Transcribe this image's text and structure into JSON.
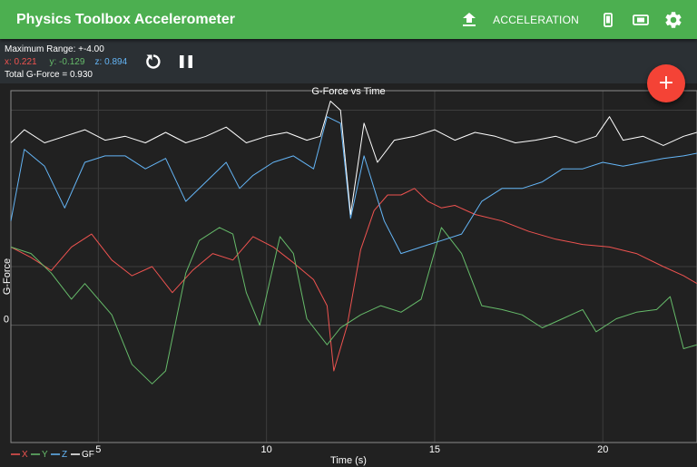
{
  "app": {
    "title": "Physics Toolbox Accelerometer"
  },
  "toolbar": {
    "mode_label": "ACCELERATION"
  },
  "readout": {
    "max_range": "Maximum Range: +-4.00",
    "x": "x: 0.221",
    "y": "y: -0.129",
    "z": "z: 0.894",
    "total": "Total G-Force = 0.930"
  },
  "icons": {
    "upload": "upload-icon",
    "portrait": "phone-portrait-icon",
    "landscape": "phone-landscape-icon",
    "settings": "gear-icon",
    "reset": "refresh-icon",
    "pause": "pause-icon",
    "add": "plus-icon"
  },
  "colors": {
    "appbar": "#4caf50",
    "x": "#ef5350",
    "y": "#66bb6a",
    "z": "#64b5f6",
    "gf": "#ffffff",
    "fab": "#f44336"
  },
  "chart_data": {
    "type": "line",
    "title": "G-Force vs Time",
    "xlabel": "Time (s)",
    "ylabel": "G-Force",
    "xlim": [
      2.4,
      22.8
    ],
    "ylim": [
      -0.9,
      1.8
    ],
    "x_ticks": [
      5,
      10,
      15,
      20
    ],
    "y_ticks": [
      0
    ],
    "grid": true,
    "legend_position": "bottom-left",
    "series": [
      {
        "name": "X",
        "color": "#ef5350",
        "points": [
          [
            2.4,
            0.6
          ],
          [
            3.0,
            0.52
          ],
          [
            3.6,
            0.42
          ],
          [
            4.2,
            0.6
          ],
          [
            4.8,
            0.7
          ],
          [
            5.4,
            0.5
          ],
          [
            6.0,
            0.38
          ],
          [
            6.6,
            0.45
          ],
          [
            7.2,
            0.25
          ],
          [
            7.8,
            0.42
          ],
          [
            8.4,
            0.55
          ],
          [
            9.0,
            0.5
          ],
          [
            9.6,
            0.68
          ],
          [
            10.2,
            0.6
          ],
          [
            10.8,
            0.48
          ],
          [
            11.4,
            0.35
          ],
          [
            11.8,
            0.15
          ],
          [
            12.0,
            -0.35
          ],
          [
            12.4,
            0.0
          ],
          [
            12.8,
            0.58
          ],
          [
            13.2,
            0.88
          ],
          [
            13.6,
            1.0
          ],
          [
            14.0,
            1.0
          ],
          [
            14.4,
            1.05
          ],
          [
            14.8,
            0.95
          ],
          [
            15.2,
            0.9
          ],
          [
            15.6,
            0.92
          ],
          [
            16.2,
            0.85
          ],
          [
            17.0,
            0.8
          ],
          [
            17.8,
            0.72
          ],
          [
            18.6,
            0.66
          ],
          [
            19.4,
            0.62
          ],
          [
            20.2,
            0.6
          ],
          [
            21.0,
            0.55
          ],
          [
            21.8,
            0.45
          ],
          [
            22.4,
            0.38
          ],
          [
            22.8,
            0.32
          ]
        ]
      },
      {
        "name": "Y",
        "color": "#66bb6a",
        "points": [
          [
            2.4,
            0.6
          ],
          [
            3.0,
            0.55
          ],
          [
            3.6,
            0.4
          ],
          [
            4.2,
            0.2
          ],
          [
            4.6,
            0.32
          ],
          [
            5.4,
            0.08
          ],
          [
            6.0,
            -0.3
          ],
          [
            6.6,
            -0.45
          ],
          [
            7.0,
            -0.35
          ],
          [
            7.6,
            0.4
          ],
          [
            8.0,
            0.65
          ],
          [
            8.6,
            0.75
          ],
          [
            9.0,
            0.7
          ],
          [
            9.4,
            0.25
          ],
          [
            9.8,
            0.0
          ],
          [
            10.4,
            0.68
          ],
          [
            10.8,
            0.55
          ],
          [
            11.2,
            0.05
          ],
          [
            11.8,
            -0.15
          ],
          [
            12.2,
            -0.02
          ],
          [
            12.8,
            0.08
          ],
          [
            13.4,
            0.15
          ],
          [
            14.0,
            0.1
          ],
          [
            14.6,
            0.2
          ],
          [
            15.2,
            0.75
          ],
          [
            15.8,
            0.55
          ],
          [
            16.4,
            0.15
          ],
          [
            17.0,
            0.12
          ],
          [
            17.6,
            0.08
          ],
          [
            18.2,
            -0.02
          ],
          [
            18.8,
            0.05
          ],
          [
            19.4,
            0.12
          ],
          [
            19.8,
            -0.05
          ],
          [
            20.4,
            0.05
          ],
          [
            21.0,
            0.1
          ],
          [
            21.6,
            0.12
          ],
          [
            22.0,
            0.22
          ],
          [
            22.4,
            -0.18
          ],
          [
            22.8,
            -0.15
          ]
        ]
      },
      {
        "name": "Z",
        "color": "#64b5f6",
        "points": [
          [
            2.4,
            0.8
          ],
          [
            2.8,
            1.35
          ],
          [
            3.4,
            1.22
          ],
          [
            4.0,
            0.9
          ],
          [
            4.6,
            1.25
          ],
          [
            5.2,
            1.3
          ],
          [
            5.8,
            1.3
          ],
          [
            6.4,
            1.2
          ],
          [
            7.0,
            1.28
          ],
          [
            7.6,
            0.95
          ],
          [
            8.2,
            1.1
          ],
          [
            8.8,
            1.25
          ],
          [
            9.2,
            1.05
          ],
          [
            9.6,
            1.15
          ],
          [
            10.2,
            1.25
          ],
          [
            10.8,
            1.3
          ],
          [
            11.4,
            1.2
          ],
          [
            11.8,
            1.6
          ],
          [
            12.2,
            1.55
          ],
          [
            12.5,
            0.82
          ],
          [
            12.9,
            1.3
          ],
          [
            13.5,
            0.8
          ],
          [
            14.0,
            0.55
          ],
          [
            14.6,
            0.6
          ],
          [
            15.2,
            0.65
          ],
          [
            15.8,
            0.7
          ],
          [
            16.4,
            0.95
          ],
          [
            17.0,
            1.05
          ],
          [
            17.6,
            1.05
          ],
          [
            18.2,
            1.1
          ],
          [
            18.8,
            1.2
          ],
          [
            19.4,
            1.2
          ],
          [
            20.0,
            1.25
          ],
          [
            20.6,
            1.22
          ],
          [
            21.2,
            1.25
          ],
          [
            21.8,
            1.28
          ],
          [
            22.4,
            1.3
          ],
          [
            22.8,
            1.32
          ]
        ]
      },
      {
        "name": "GF",
        "color": "#ffffff",
        "points": [
          [
            2.4,
            1.4
          ],
          [
            2.8,
            1.5
          ],
          [
            3.4,
            1.4
          ],
          [
            4.0,
            1.45
          ],
          [
            4.6,
            1.5
          ],
          [
            5.2,
            1.42
          ],
          [
            5.8,
            1.45
          ],
          [
            6.4,
            1.4
          ],
          [
            7.0,
            1.48
          ],
          [
            7.6,
            1.4
          ],
          [
            8.2,
            1.45
          ],
          [
            8.8,
            1.52
          ],
          [
            9.4,
            1.4
          ],
          [
            10.0,
            1.45
          ],
          [
            10.6,
            1.48
          ],
          [
            11.2,
            1.42
          ],
          [
            11.6,
            1.45
          ],
          [
            11.9,
            1.72
          ],
          [
            12.2,
            1.65
          ],
          [
            12.5,
            0.85
          ],
          [
            12.9,
            1.55
          ],
          [
            13.3,
            1.25
          ],
          [
            13.8,
            1.42
          ],
          [
            14.4,
            1.45
          ],
          [
            15.0,
            1.5
          ],
          [
            15.6,
            1.42
          ],
          [
            16.2,
            1.48
          ],
          [
            16.8,
            1.45
          ],
          [
            17.4,
            1.4
          ],
          [
            18.0,
            1.42
          ],
          [
            18.6,
            1.45
          ],
          [
            19.2,
            1.4
          ],
          [
            19.8,
            1.45
          ],
          [
            20.2,
            1.6
          ],
          [
            20.6,
            1.42
          ],
          [
            21.2,
            1.45
          ],
          [
            21.8,
            1.38
          ],
          [
            22.4,
            1.45
          ],
          [
            22.8,
            1.48
          ]
        ]
      }
    ]
  }
}
